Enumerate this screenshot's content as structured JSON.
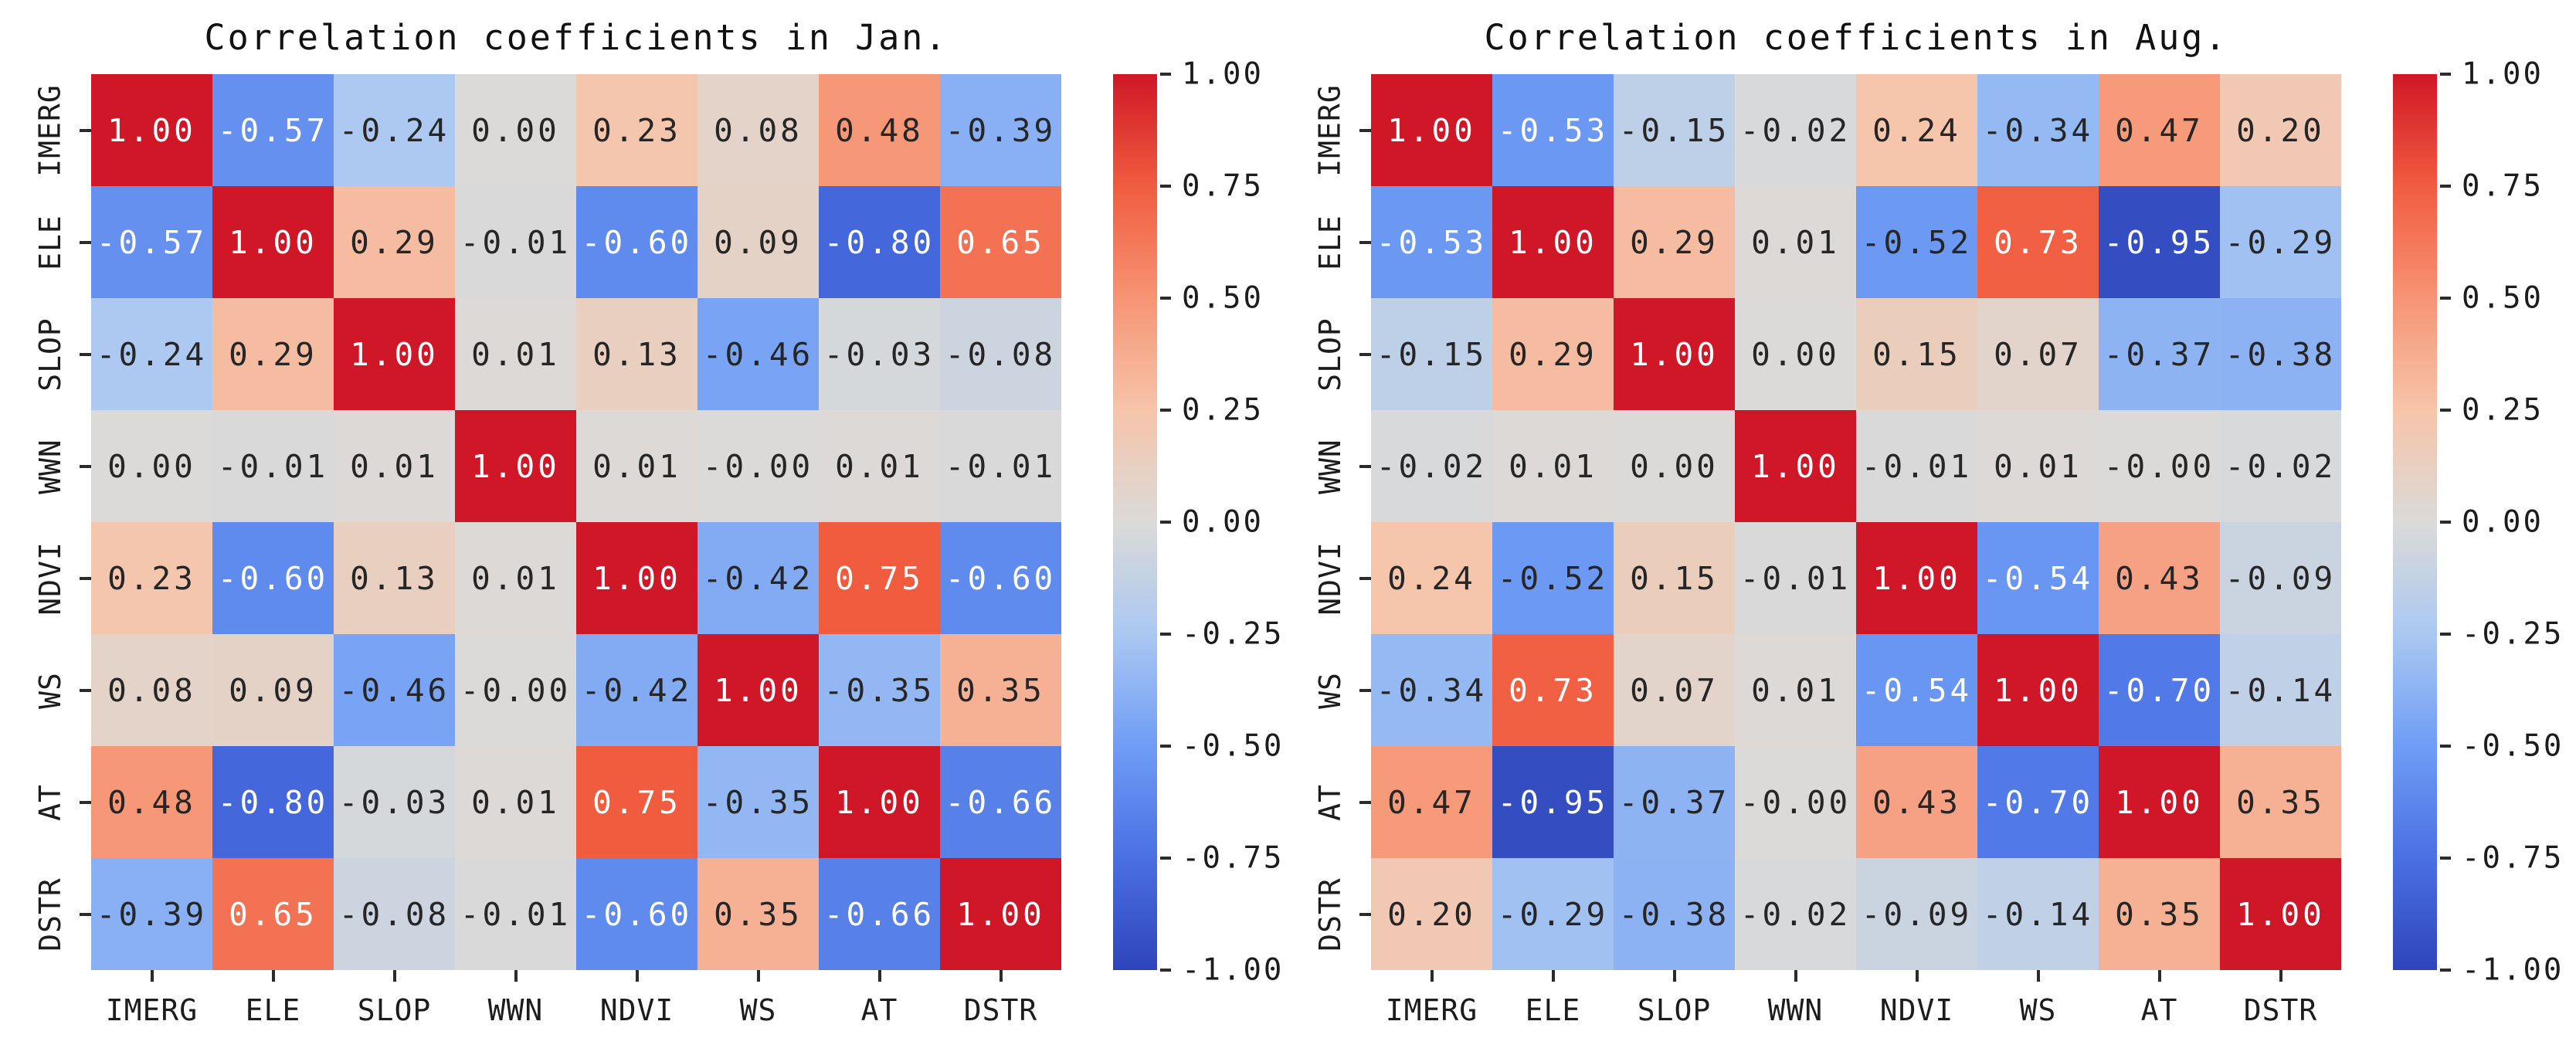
{
  "style": {
    "background": "#ffffff",
    "dark_text": "#262626",
    "light_text": "#ffffff",
    "white_text_threshold": 0.53,
    "tick_color": "#2b2b2b",
    "palette_anchors": [
      {
        "v": -1.0,
        "color": "#2e45ba"
      },
      {
        "v": -0.75,
        "color": "#4a70e3"
      },
      {
        "v": -0.5,
        "color": "#6f9df5"
      },
      {
        "v": -0.25,
        "color": "#abc8f2"
      },
      {
        "v": 0.0,
        "color": "#dbdad8"
      },
      {
        "v": 0.25,
        "color": "#f6c4aa"
      },
      {
        "v": 0.5,
        "color": "#f69474"
      },
      {
        "v": 0.75,
        "color": "#f15c3f"
      },
      {
        "v": 1.0,
        "color": "#cf1727"
      }
    ]
  },
  "chart_data": [
    {
      "type": "heatmap",
      "title": "Correlation coefficients in Jan.",
      "categories": [
        "IMERG",
        "ELE",
        "SLOP",
        "WWN",
        "NDVI",
        "WS",
        "AT",
        "DSTR"
      ],
      "row_labels": [
        "IMERG",
        "ELE",
        "SLOP",
        "WWN",
        "NDVI",
        "WS",
        "AT",
        "DSTR"
      ],
      "values": [
        [
          1.0,
          -0.57,
          -0.24,
          0.0,
          0.23,
          0.08,
          0.48,
          -0.39
        ],
        [
          -0.57,
          1.0,
          0.29,
          -0.01,
          -0.6,
          0.09,
          -0.8,
          0.65
        ],
        [
          -0.24,
          0.29,
          1.0,
          0.01,
          0.13,
          -0.46,
          -0.03,
          -0.08
        ],
        [
          0.0,
          -0.01,
          0.01,
          1.0,
          0.01,
          0.0,
          0.01,
          -0.01
        ],
        [
          0.23,
          -0.6,
          0.13,
          0.01,
          1.0,
          -0.42,
          0.75,
          -0.6
        ],
        [
          0.08,
          0.09,
          -0.46,
          0.0,
          -0.42,
          1.0,
          -0.35,
          0.35
        ],
        [
          0.48,
          -0.8,
          -0.03,
          0.01,
          0.75,
          -0.35,
          1.0,
          -0.66
        ],
        [
          -0.39,
          0.65,
          -0.08,
          -0.01,
          -0.6,
          0.35,
          -0.66,
          1.0
        ]
      ],
      "value_labels": [
        [
          "1.00",
          "-0.57",
          "-0.24",
          "0.00",
          "0.23",
          "0.08",
          "0.48",
          "-0.39"
        ],
        [
          "-0.57",
          "1.00",
          "0.29",
          "-0.01",
          "-0.60",
          "0.09",
          "-0.80",
          "0.65"
        ],
        [
          "-0.24",
          "0.29",
          "1.00",
          "0.01",
          "0.13",
          "-0.46",
          "-0.03",
          "-0.08"
        ],
        [
          "0.00",
          "-0.01",
          "0.01",
          "1.00",
          "0.01",
          "-0.00",
          "0.01",
          "-0.01"
        ],
        [
          "0.23",
          "-0.60",
          "0.13",
          "0.01",
          "1.00",
          "-0.42",
          "0.75",
          "-0.60"
        ],
        [
          "0.08",
          "0.09",
          "-0.46",
          "-0.00",
          "-0.42",
          "1.00",
          "-0.35",
          "0.35"
        ],
        [
          "0.48",
          "-0.80",
          "-0.03",
          "0.01",
          "0.75",
          "-0.35",
          "1.00",
          "-0.66"
        ],
        [
          "-0.39",
          "0.65",
          "-0.08",
          "-0.01",
          "-0.60",
          "0.35",
          "-0.66",
          "1.00"
        ]
      ],
      "colorbar": {
        "vmin": -1.0,
        "vmax": 1.0,
        "tick_labels": [
          "1.00",
          "0.75",
          "0.50",
          "0.25",
          "0.00",
          "-0.25",
          "-0.50",
          "-0.75",
          "-1.00"
        ]
      },
      "legend_position": "right",
      "grid": false
    },
    {
      "type": "heatmap",
      "title": "Correlation coefficients in Aug.",
      "categories": [
        "IMERG",
        "ELE",
        "SLOP",
        "WWN",
        "NDVI",
        "WS",
        "AT",
        "DSTR"
      ],
      "row_labels": [
        "IMERG",
        "ELE",
        "SLOP",
        "WWN",
        "NDVI",
        "WS",
        "AT",
        "DSTR"
      ],
      "values": [
        [
          1.0,
          -0.53,
          -0.15,
          -0.02,
          0.24,
          -0.34,
          0.47,
          0.2
        ],
        [
          -0.53,
          1.0,
          0.29,
          0.01,
          -0.52,
          0.73,
          -0.95,
          -0.29
        ],
        [
          -0.15,
          0.29,
          1.0,
          0.0,
          0.15,
          0.07,
          -0.37,
          -0.38
        ],
        [
          -0.02,
          0.01,
          0.0,
          1.0,
          -0.01,
          0.01,
          0.0,
          -0.02
        ],
        [
          0.24,
          -0.52,
          0.15,
          -0.01,
          1.0,
          -0.54,
          0.43,
          -0.09
        ],
        [
          -0.34,
          0.73,
          0.07,
          0.01,
          -0.54,
          1.0,
          -0.7,
          -0.14
        ],
        [
          0.47,
          -0.95,
          -0.37,
          0.0,
          0.43,
          -0.7,
          1.0,
          0.35
        ],
        [
          0.2,
          -0.29,
          -0.38,
          -0.02,
          -0.09,
          -0.14,
          0.35,
          1.0
        ]
      ],
      "value_labels": [
        [
          "1.00",
          "-0.53",
          "-0.15",
          "-0.02",
          "0.24",
          "-0.34",
          "0.47",
          "0.20"
        ],
        [
          "-0.53",
          "1.00",
          "0.29",
          "0.01",
          "-0.52",
          "0.73",
          "-0.95",
          "-0.29"
        ],
        [
          "-0.15",
          "0.29",
          "1.00",
          "0.00",
          "0.15",
          "0.07",
          "-0.37",
          "-0.38"
        ],
        [
          "-0.02",
          "0.01",
          "0.00",
          "1.00",
          "-0.01",
          "0.01",
          "-0.00",
          "-0.02"
        ],
        [
          "0.24",
          "-0.52",
          "0.15",
          "-0.01",
          "1.00",
          "-0.54",
          "0.43",
          "-0.09"
        ],
        [
          "-0.34",
          "0.73",
          "0.07",
          "0.01",
          "-0.54",
          "1.00",
          "-0.70",
          "-0.14"
        ],
        [
          "0.47",
          "-0.95",
          "-0.37",
          "-0.00",
          "0.43",
          "-0.70",
          "1.00",
          "0.35"
        ],
        [
          "0.20",
          "-0.29",
          "-0.38",
          "-0.02",
          "-0.09",
          "-0.14",
          "0.35",
          "1.00"
        ]
      ],
      "colorbar": {
        "vmin": -1.0,
        "vmax": 1.0,
        "tick_labels": [
          "1.00",
          "0.75",
          "0.50",
          "0.25",
          "0.00",
          "-0.25",
          "-0.50",
          "-0.75",
          "-1.00"
        ]
      },
      "legend_position": "right",
      "grid": false
    }
  ]
}
